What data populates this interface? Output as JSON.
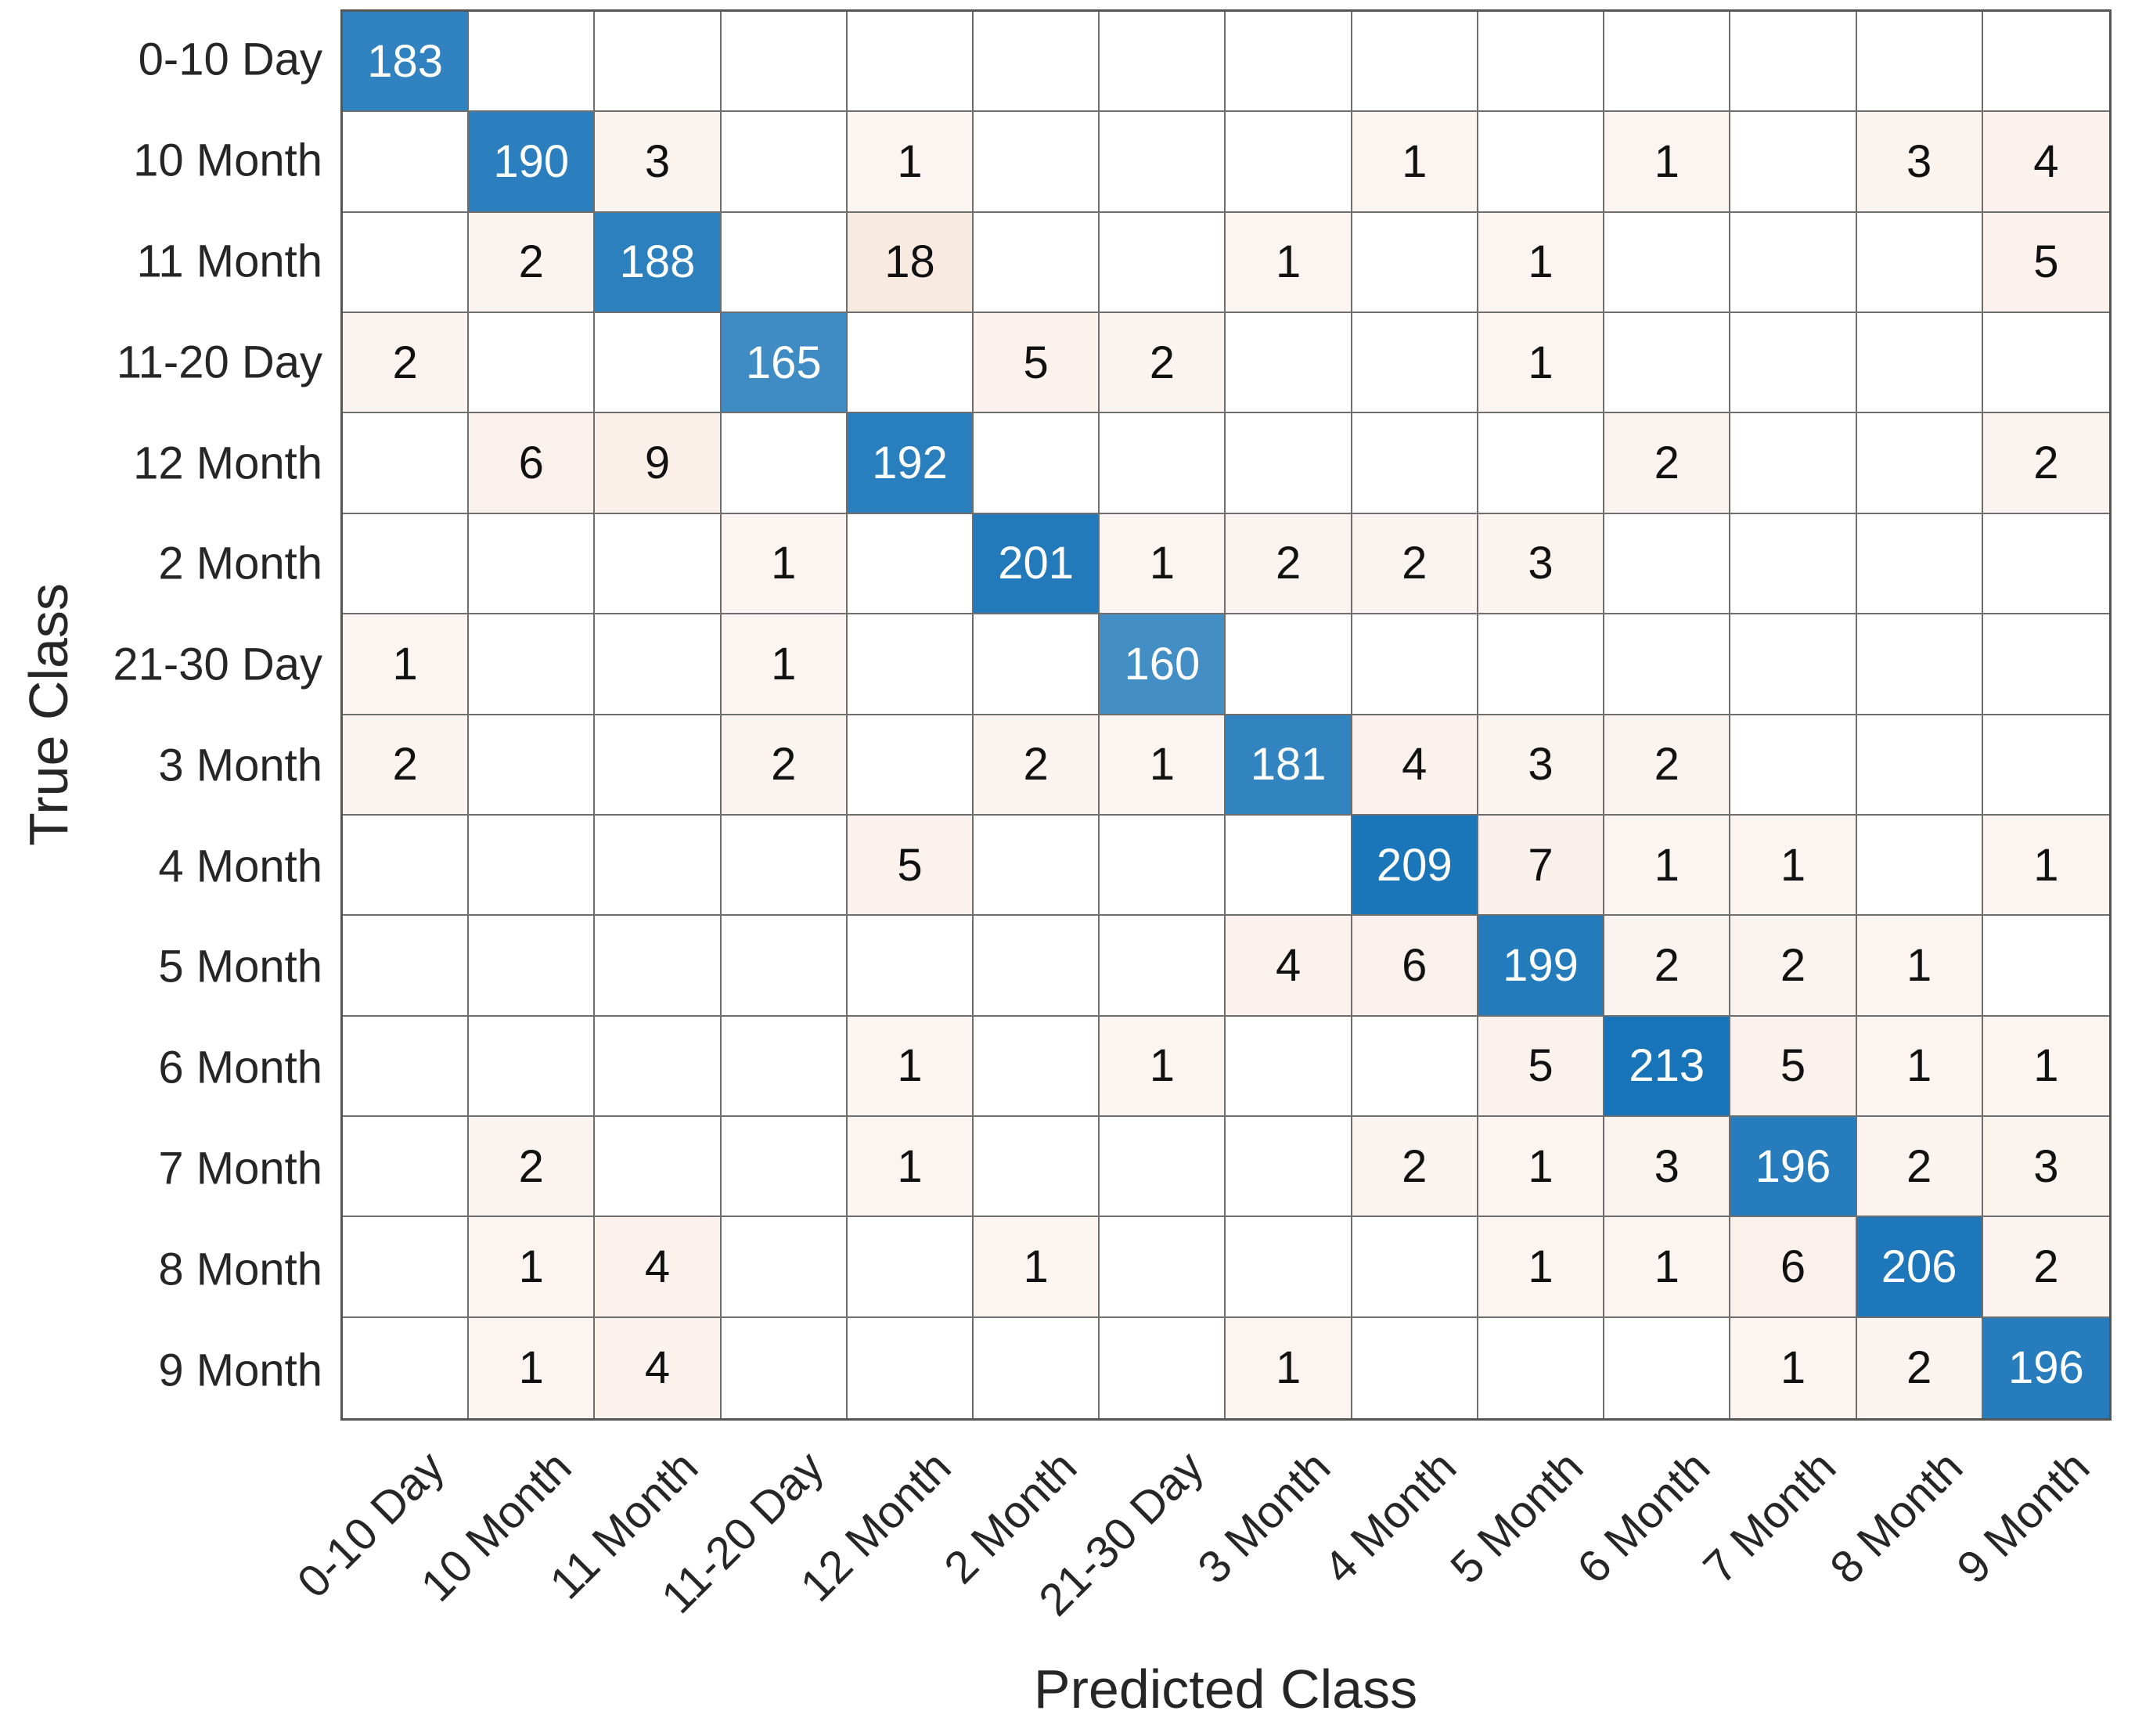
{
  "chart_data": {
    "type": "heatmap",
    "subtype": "confusion-matrix",
    "title": "",
    "xlabel": "Predicted Class",
    "ylabel": "True Class",
    "categories": [
      "0-10 Day",
      "10 Month",
      "11 Month",
      "11-20 Day",
      "12 Month",
      "2 Month",
      "21-30 Day",
      "3 Month",
      "4 Month",
      "5 Month",
      "6 Month",
      "7 Month",
      "8 Month",
      "9 Month"
    ],
    "matrix": [
      [
        183,
        0,
        0,
        0,
        0,
        0,
        0,
        0,
        0,
        0,
        0,
        0,
        0,
        0
      ],
      [
        0,
        190,
        3,
        0,
        1,
        0,
        0,
        0,
        1,
        0,
        1,
        0,
        3,
        4
      ],
      [
        0,
        2,
        188,
        0,
        18,
        0,
        0,
        1,
        0,
        1,
        0,
        0,
        0,
        5
      ],
      [
        2,
        0,
        0,
        165,
        0,
        5,
        2,
        0,
        0,
        1,
        0,
        0,
        0,
        0
      ],
      [
        0,
        6,
        9,
        0,
        192,
        0,
        0,
        0,
        0,
        0,
        2,
        0,
        0,
        2
      ],
      [
        0,
        0,
        0,
        1,
        0,
        201,
        1,
        2,
        2,
        3,
        0,
        0,
        0,
        0
      ],
      [
        1,
        0,
        0,
        1,
        0,
        0,
        160,
        0,
        0,
        0,
        0,
        0,
        0,
        0
      ],
      [
        2,
        0,
        0,
        2,
        0,
        2,
        1,
        181,
        4,
        3,
        2,
        0,
        0,
        0
      ],
      [
        0,
        0,
        0,
        0,
        5,
        0,
        0,
        0,
        209,
        7,
        1,
        1,
        0,
        1
      ],
      [
        0,
        0,
        0,
        0,
        0,
        0,
        0,
        4,
        6,
        199,
        2,
        2,
        1,
        0
      ],
      [
        0,
        0,
        0,
        0,
        1,
        0,
        1,
        0,
        0,
        5,
        213,
        5,
        1,
        1
      ],
      [
        0,
        2,
        0,
        0,
        1,
        0,
        0,
        0,
        2,
        1,
        3,
        196,
        2,
        3
      ],
      [
        0,
        1,
        4,
        0,
        0,
        1,
        0,
        0,
        0,
        1,
        1,
        6,
        206,
        2
      ],
      [
        0,
        1,
        4,
        0,
        0,
        0,
        0,
        1,
        0,
        0,
        0,
        1,
        2,
        196
      ]
    ],
    "max_value": 213,
    "diagonal_color": "#1874b8",
    "offdiagonal_color": "#c75416",
    "diagonal_text_color": "#ffffff",
    "offdiagonal_text_color": "#111111",
    "grid": true,
    "legend_position": "none",
    "x_tick_rotation_deg": 45
  }
}
